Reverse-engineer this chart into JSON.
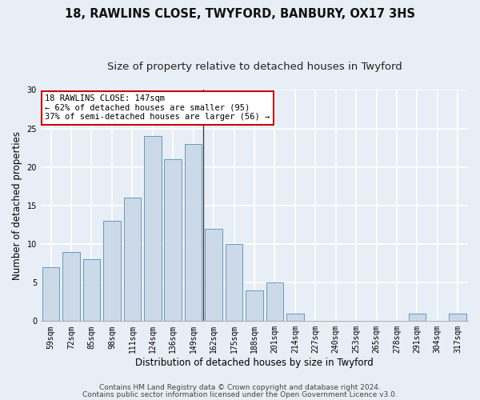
{
  "title1": "18, RAWLINS CLOSE, TWYFORD, BANBURY, OX17 3HS",
  "title2": "Size of property relative to detached houses in Twyford",
  "xlabel": "Distribution of detached houses by size in Twyford",
  "ylabel": "Number of detached properties",
  "footer1": "Contains HM Land Registry data © Crown copyright and database right 2024.",
  "footer2": "Contains public sector information licensed under the Open Government Licence v3.0.",
  "annotation_line1": "18 RAWLINS CLOSE: 147sqm",
  "annotation_line2": "← 62% of detached houses are smaller (95)",
  "annotation_line3": "37% of semi-detached houses are larger (56) →",
  "bar_labels": [
    "59sqm",
    "72sqm",
    "85sqm",
    "98sqm",
    "111sqm",
    "124sqm",
    "136sqm",
    "149sqm",
    "162sqm",
    "175sqm",
    "188sqm",
    "201sqm",
    "214sqm",
    "227sqm",
    "240sqm",
    "253sqm",
    "265sqm",
    "278sqm",
    "291sqm",
    "304sqm",
    "317sqm"
  ],
  "bar_values": [
    7,
    9,
    8,
    13,
    16,
    24,
    21,
    23,
    12,
    10,
    4,
    5,
    1,
    0,
    0,
    0,
    0,
    0,
    1,
    0,
    1
  ],
  "bar_color": "#ccd9e8",
  "bar_edge_color": "#6699bb",
  "vline_x": 7.5,
  "ylim": [
    0,
    30
  ],
  "yticks": [
    0,
    5,
    10,
    15,
    20,
    25,
    30
  ],
  "bg_color": "#e8eef5",
  "plot_bg_color": "#e8eef5",
  "grid_color": "#ffffff",
  "annotation_box_color": "#ffffff",
  "annotation_box_edge": "#cc0000",
  "title1_fontsize": 10.5,
  "title2_fontsize": 9.5,
  "xlabel_fontsize": 8.5,
  "ylabel_fontsize": 8.5,
  "tick_fontsize": 7,
  "footer_fontsize": 6.5,
  "annotation_fontsize": 7.5
}
